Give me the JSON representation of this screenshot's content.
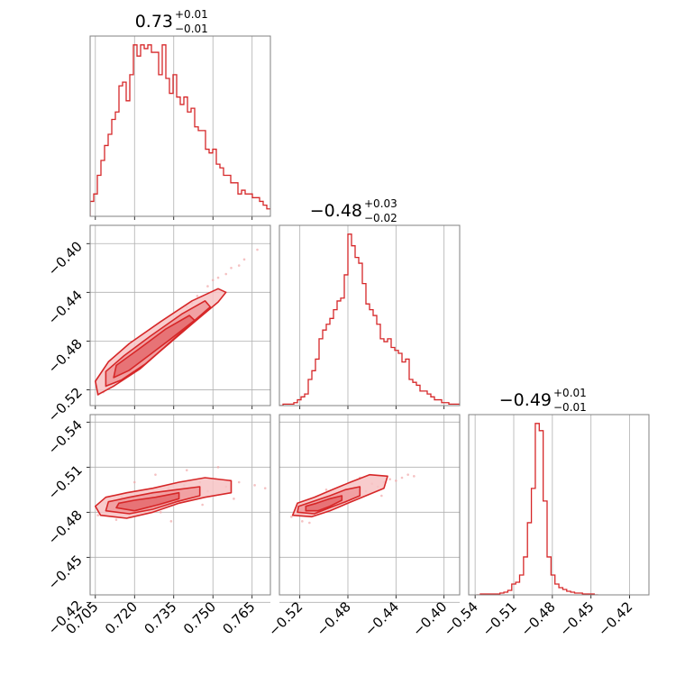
{
  "chart_data": {
    "type": "corner",
    "color": "#d62728",
    "grid": true,
    "parameters": [
      {
        "title": {
          "main": "0.73",
          "upper": "+0.01",
          "lower": "−0.01"
        }
      },
      {
        "title": {
          "main": "−0.48",
          "upper": "+0.03",
          "lower": "−0.02"
        }
      },
      {
        "title": {
          "main": "−0.49",
          "upper": "+0.01",
          "lower": "−0.01"
        }
      }
    ],
    "panels": [
      {
        "id": "hist-0",
        "kind": "hist",
        "row": 0,
        "col": 0,
        "xlim": [
          0.703,
          0.772
        ],
        "xticks": [
          {
            "v": 0.705,
            "label": ""
          },
          {
            "v": 0.72,
            "label": ""
          },
          {
            "v": 0.735,
            "label": ""
          },
          {
            "v": 0.75,
            "label": ""
          },
          {
            "v": 0.765,
            "label": ""
          }
        ],
        "bins": {
          "start": 0.703,
          "width": 0.00138,
          "counts": [
            8,
            12,
            22,
            30,
            38,
            44,
            52,
            56,
            70,
            72,
            62,
            76,
            92,
            86,
            92,
            90,
            92,
            88,
            88,
            76,
            92,
            74,
            66,
            76,
            64,
            60,
            64,
            56,
            58,
            48,
            46,
            46,
            36,
            34,
            36,
            28,
            26,
            22,
            22,
            18,
            18,
            12,
            14,
            12,
            12,
            10,
            10,
            8,
            6,
            4,
            4,
            3,
            2,
            1
          ]
        }
      },
      {
        "id": "scatter-1-0",
        "kind": "2d",
        "row": 1,
        "col": 0,
        "xlim": [
          0.703,
          0.772
        ],
        "ylim": [
          0.533,
          0.385
        ],
        "xticks": [
          {
            "v": 0.705,
            "label": ""
          },
          {
            "v": 0.72,
            "label": ""
          },
          {
            "v": 0.735,
            "label": ""
          },
          {
            "v": 0.75,
            "label": ""
          },
          {
            "v": 0.765,
            "label": ""
          }
        ],
        "yticks": [
          {
            "v": 0.4,
            "label": "−0.40"
          },
          {
            "v": 0.44,
            "label": "−0.44"
          },
          {
            "v": 0.48,
            "label": "−0.48"
          },
          {
            "v": 0.52,
            "label": "−0.52"
          }
        ],
        "points": [
          [
            0.706,
            0.524
          ],
          [
            0.708,
            0.522
          ],
          [
            0.71,
            0.515
          ],
          [
            0.712,
            0.512
          ],
          [
            0.715,
            0.506
          ],
          [
            0.718,
            0.5
          ],
          [
            0.721,
            0.492
          ],
          [
            0.724,
            0.487
          ],
          [
            0.727,
            0.482
          ],
          [
            0.73,
            0.474
          ],
          [
            0.733,
            0.468
          ],
          [
            0.736,
            0.46
          ],
          [
            0.74,
            0.452
          ],
          [
            0.744,
            0.443
          ],
          [
            0.748,
            0.435
          ],
          [
            0.752,
            0.428
          ],
          [
            0.757,
            0.42
          ],
          [
            0.762,
            0.413
          ],
          [
            0.767,
            0.405
          ],
          [
            0.709,
            0.518
          ],
          [
            0.714,
            0.509
          ],
          [
            0.719,
            0.497
          ],
          [
            0.722,
            0.495
          ],
          [
            0.726,
            0.485
          ],
          [
            0.731,
            0.477
          ],
          [
            0.738,
            0.462
          ],
          [
            0.742,
            0.449
          ],
          [
            0.75,
            0.43
          ],
          [
            0.755,
            0.425
          ],
          [
            0.76,
            0.418
          ]
        ],
        "contours": [
          [
            [
              0.706,
              0.524
            ],
            [
              0.712,
              0.517
            ],
            [
              0.722,
              0.503
            ],
            [
              0.73,
              0.488
            ],
            [
              0.742,
              0.466
            ],
            [
              0.752,
              0.448
            ],
            [
              0.755,
              0.44
            ],
            [
              0.752,
              0.437
            ],
            [
              0.742,
              0.447
            ],
            [
              0.73,
              0.464
            ],
            [
              0.718,
              0.482
            ],
            [
              0.71,
              0.497
            ],
            [
              0.705,
              0.513
            ]
          ],
          [
            [
              0.709,
              0.517
            ],
            [
              0.715,
              0.512
            ],
            [
              0.724,
              0.499
            ],
            [
              0.732,
              0.484
            ],
            [
              0.742,
              0.465
            ],
            [
              0.749,
              0.452
            ],
            [
              0.747,
              0.447
            ],
            [
              0.738,
              0.458
            ],
            [
              0.726,
              0.476
            ],
            [
              0.716,
              0.492
            ],
            [
              0.709,
              0.505
            ]
          ],
          [
            [
              0.712,
              0.51
            ],
            [
              0.718,
              0.504
            ],
            [
              0.726,
              0.491
            ],
            [
              0.734,
              0.478
            ],
            [
              0.743,
              0.463
            ],
            [
              0.741,
              0.459
            ],
            [
              0.732,
              0.47
            ],
            [
              0.722,
              0.486
            ],
            [
              0.713,
              0.5
            ]
          ]
        ]
      },
      {
        "id": "hist-1",
        "kind": "hist",
        "row": 1,
        "col": 1,
        "xlim": [
          0.537,
          0.387
        ],
        "xticks": [
          {
            "v": 0.52,
            "label": ""
          },
          {
            "v": 0.48,
            "label": ""
          },
          {
            "v": 0.44,
            "label": ""
          },
          {
            "v": 0.4,
            "label": ""
          }
        ],
        "bins": {
          "start": 0.537,
          "width": -0.003,
          "counts": [
            0,
            1,
            1,
            1,
            2,
            4,
            6,
            8,
            18,
            24,
            32,
            46,
            52,
            56,
            60,
            66,
            72,
            74,
            90,
            118,
            110,
            102,
            98,
            84,
            70,
            66,
            62,
            56,
            46,
            44,
            46,
            40,
            38,
            36,
            30,
            32,
            18,
            16,
            14,
            10,
            10,
            8,
            6,
            4,
            4,
            2,
            2,
            1,
            1,
            1
          ]
        }
      },
      {
        "id": "scatter-2-0",
        "kind": "2d",
        "row": 2,
        "col": 0,
        "xlim": [
          0.703,
          0.772
        ],
        "ylim": [
          0.425,
          0.545
        ],
        "xticks": [
          {
            "v": 0.705,
            "label": "0.705"
          },
          {
            "v": 0.72,
            "label": "0.720"
          },
          {
            "v": 0.735,
            "label": "0.735"
          },
          {
            "v": 0.75,
            "label": "0.750"
          },
          {
            "v": 0.765,
            "label": "0.765"
          }
        ],
        "yticks": [
          {
            "v": 0.42,
            "label": "−0.42"
          },
          {
            "v": 0.45,
            "label": "−0.45"
          },
          {
            "v": 0.48,
            "label": "−0.48"
          },
          {
            "v": 0.51,
            "label": "−0.51"
          },
          {
            "v": 0.54,
            "label": "−0.54"
          }
        ],
        "points": [
          [
            0.706,
            0.478
          ],
          [
            0.709,
            0.486
          ],
          [
            0.712,
            0.482
          ],
          [
            0.715,
            0.49
          ],
          [
            0.718,
            0.477
          ],
          [
            0.721,
            0.491
          ],
          [
            0.724,
            0.484
          ],
          [
            0.727,
            0.493
          ],
          [
            0.73,
            0.48
          ],
          [
            0.733,
            0.496
          ],
          [
            0.736,
            0.488
          ],
          [
            0.739,
            0.498
          ],
          [
            0.742,
            0.492
          ],
          [
            0.745,
            0.5
          ],
          [
            0.748,
            0.494
          ],
          [
            0.751,
            0.502
          ],
          [
            0.755,
            0.497
          ],
          [
            0.76,
            0.5
          ],
          [
            0.766,
            0.498
          ],
          [
            0.77,
            0.496
          ],
          [
            0.713,
            0.475
          ],
          [
            0.72,
            0.5
          ],
          [
            0.728,
            0.505
          ],
          [
            0.734,
            0.474
          ],
          [
            0.74,
            0.508
          ],
          [
            0.746,
            0.485
          ],
          [
            0.752,
            0.51
          ],
          [
            0.758,
            0.489
          ]
        ],
        "contours": [
          [
            [
              0.707,
              0.478
            ],
            [
              0.717,
              0.476
            ],
            [
              0.727,
              0.48
            ],
            [
              0.737,
              0.486
            ],
            [
              0.747,
              0.49
            ],
            [
              0.757,
              0.493
            ],
            [
              0.757,
              0.501
            ],
            [
              0.747,
              0.503
            ],
            [
              0.737,
              0.5
            ],
            [
              0.727,
              0.496
            ],
            [
              0.717,
              0.493
            ],
            [
              0.709,
              0.49
            ],
            [
              0.705,
              0.484
            ]
          ],
          [
            [
              0.709,
              0.481
            ],
            [
              0.718,
              0.479
            ],
            [
              0.727,
              0.482
            ],
            [
              0.736,
              0.487
            ],
            [
              0.745,
              0.491
            ],
            [
              0.745,
              0.497
            ],
            [
              0.736,
              0.495
            ],
            [
              0.727,
              0.493
            ],
            [
              0.718,
              0.49
            ],
            [
              0.71,
              0.487
            ]
          ],
          [
            [
              0.713,
              0.483
            ],
            [
              0.72,
              0.481
            ],
            [
              0.729,
              0.485
            ],
            [
              0.737,
              0.489
            ],
            [
              0.737,
              0.493
            ],
            [
              0.728,
              0.49
            ],
            [
              0.72,
              0.488
            ],
            [
              0.714,
              0.486
            ]
          ]
        ]
      },
      {
        "id": "scatter-2-1",
        "kind": "2d",
        "row": 2,
        "col": 1,
        "xlim": [
          0.537,
          0.387
        ],
        "ylim": [
          0.425,
          0.545
        ],
        "xticks": [
          {
            "v": 0.52,
            "label": "−0.52"
          },
          {
            "v": 0.48,
            "label": "−0.48"
          },
          {
            "v": 0.44,
            "label": "−0.44"
          },
          {
            "v": 0.4,
            "label": "−0.40"
          }
        ],
        "yticks": [
          {
            "v": 0.42,
            "label": ""
          },
          {
            "v": 0.45,
            "label": ""
          },
          {
            "v": 0.48,
            "label": ""
          },
          {
            "v": 0.51,
            "label": ""
          },
          {
            "v": 0.54,
            "label": ""
          }
        ],
        "points": [
          [
            0.527,
            0.477
          ],
          [
            0.522,
            0.48
          ],
          [
            0.518,
            0.474
          ],
          [
            0.514,
            0.486
          ],
          [
            0.51,
            0.479
          ],
          [
            0.505,
            0.484
          ],
          [
            0.5,
            0.488
          ],
          [
            0.495,
            0.485
          ],
          [
            0.49,
            0.49
          ],
          [
            0.485,
            0.487
          ],
          [
            0.48,
            0.493
          ],
          [
            0.475,
            0.491
          ],
          [
            0.47,
            0.496
          ],
          [
            0.465,
            0.494
          ],
          [
            0.46,
            0.499
          ],
          [
            0.455,
            0.497
          ],
          [
            0.45,
            0.5
          ],
          [
            0.445,
            0.502
          ],
          [
            0.44,
            0.501
          ],
          [
            0.435,
            0.503
          ],
          [
            0.43,
            0.505
          ],
          [
            0.425,
            0.504
          ],
          [
            0.512,
            0.473
          ],
          [
            0.498,
            0.495
          ],
          [
            0.47,
            0.503
          ],
          [
            0.452,
            0.491
          ]
        ],
        "contours": [
          [
            [
              0.526,
              0.478
            ],
            [
              0.51,
              0.477
            ],
            [
              0.495,
              0.481
            ],
            [
              0.48,
              0.486
            ],
            [
              0.465,
              0.491
            ],
            [
              0.45,
              0.496
            ],
            [
              0.447,
              0.504
            ],
            [
              0.462,
              0.505
            ],
            [
              0.478,
              0.5
            ],
            [
              0.493,
              0.495
            ],
            [
              0.508,
              0.49
            ],
            [
              0.522,
              0.486
            ]
          ],
          [
            [
              0.522,
              0.48
            ],
            [
              0.508,
              0.479
            ],
            [
              0.495,
              0.483
            ],
            [
              0.482,
              0.487
            ],
            [
              0.47,
              0.491
            ],
            [
              0.47,
              0.497
            ],
            [
              0.482,
              0.495
            ],
            [
              0.495,
              0.491
            ],
            [
              0.51,
              0.487
            ],
            [
              0.521,
              0.484
            ]
          ],
          [
            [
              0.515,
              0.481
            ],
            [
              0.505,
              0.481
            ],
            [
              0.495,
              0.484
            ],
            [
              0.485,
              0.488
            ],
            [
              0.485,
              0.491
            ],
            [
              0.495,
              0.489
            ],
            [
              0.506,
              0.486
            ],
            [
              0.515,
              0.484
            ]
          ]
        ]
      },
      {
        "id": "hist-2",
        "kind": "hist",
        "row": 2,
        "col": 2,
        "xlim": [
          0.545,
          0.405
        ],
        "xticks": [
          {
            "v": 0.54,
            "label": "−0.54"
          },
          {
            "v": 0.51,
            "label": "−0.51"
          },
          {
            "v": 0.48,
            "label": "−0.48"
          },
          {
            "v": 0.45,
            "label": "−0.45"
          },
          {
            "v": 0.42,
            "label": "−0.42"
          }
        ],
        "bins": {
          "start": 0.539,
          "width": -0.00305,
          "counts": [
            0,
            1,
            1,
            1,
            1,
            1,
            2,
            3,
            5,
            12,
            14,
            22,
            42,
            80,
            118,
            190,
            182,
            104,
            42,
            22,
            12,
            8,
            6,
            4,
            3,
            2,
            2,
            1,
            1,
            1,
            0
          ]
        }
      }
    ]
  }
}
